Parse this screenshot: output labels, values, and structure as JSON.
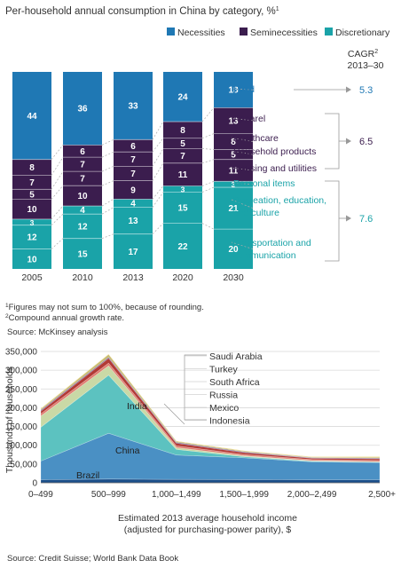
{
  "colors": {
    "necessities": "#1f78b4",
    "seminecessities": "#3b1d4e",
    "discretionary": "#1aa3a8",
    "grid": "#d0d0d0",
    "text": "#333333",
    "accent_text_dark": "#3b1d4e",
    "accent_text_teal": "#1aa3a8",
    "accent_text_blue": "#1f78b4"
  },
  "chart_data": [
    {
      "type": "bar",
      "title": "Per-household annual consumption in China by category, %",
      "title_sup": "1",
      "categories": [
        "2005",
        "2010",
        "2013",
        "2020",
        "2030"
      ],
      "legend": [
        "Necessities",
        "Seminecessities",
        "Discretionary"
      ],
      "series": [
        {
          "name": "Transportation and communication",
          "group": "discretionary",
          "values": [
            10,
            15,
            17,
            22,
            20
          ]
        },
        {
          "name": "Recreation, education, and culture",
          "group": "discretionary",
          "values": [
            12,
            12,
            13,
            15,
            21
          ]
        },
        {
          "name": "Personal items",
          "group": "discretionary",
          "values": [
            3,
            4,
            4,
            3,
            3
          ]
        },
        {
          "name": "Housing and utilities",
          "group": "seminecessities",
          "values": [
            10,
            10,
            9,
            11,
            11
          ]
        },
        {
          "name": "Household products",
          "group": "seminecessities",
          "values": [
            5,
            7,
            7,
            7,
            5
          ]
        },
        {
          "name": "Healthcare",
          "group": "seminecessities",
          "values": [
            7,
            7,
            7,
            5,
            8
          ]
        },
        {
          "name": "Apparel",
          "group": "seminecessities",
          "values": [
            8,
            6,
            6,
            8,
            13
          ]
        },
        {
          "name": "Food",
          "group": "necessities",
          "values": [
            44,
            36,
            33,
            24,
            18
          ]
        }
      ],
      "seg_labels": [
        [
          "10",
          "12",
          "3",
          "10",
          "5",
          "7",
          "8",
          "44"
        ],
        [
          "15",
          "12",
          "4",
          "10",
          "7",
          "7",
          "6",
          "36"
        ],
        [
          "17",
          "13",
          "4",
          "9",
          "7",
          "7",
          "6",
          "33"
        ],
        [
          "22",
          "15",
          "3",
          "11",
          "7",
          "5",
          "8",
          "24"
        ],
        [
          "20",
          "21",
          "3",
          "11",
          "5",
          "8",
          "13",
          "18"
        ]
      ],
      "cagr_header": "CAGR",
      "cagr_sup": "2",
      "cagr_period": "2013–30",
      "cagr": [
        {
          "group": "necessities",
          "value": "5.3"
        },
        {
          "group": "seminecessities",
          "value": "6.5"
        },
        {
          "group": "discretionary",
          "value": "7.6"
        }
      ],
      "footnote1": "Figures may not sum to 100%, because of rounding.",
      "footnote2": "Compound annual growth rate.",
      "source": "Source: McKinsey analysis"
    },
    {
      "type": "area",
      "ylabel": "Thousands of households",
      "xlabel_line1": "Estimated 2013 average household income",
      "xlabel_line2": "(adjusted for purchasing-power parity), $",
      "categories": [
        "0–499",
        "500–999",
        "1,000–1,499",
        "1,500–1,999",
        "2,000–2,499",
        "2,500+"
      ],
      "ylim": [
        0,
        350000
      ],
      "yticks": [
        "0",
        "50,000",
        "100,000",
        "150,000",
        "200,000",
        "250,000",
        "300,000",
        "350,000"
      ],
      "stack_order": [
        "Brazil",
        "China",
        "India",
        "Indonesia",
        "Mexico",
        "Russia",
        "South Africa",
        "Turkey",
        "Saudi Arabia"
      ],
      "series": [
        {
          "name": "Brazil",
          "values": [
            8000,
            10000,
            9000,
            8500,
            8000,
            8000
          ],
          "color": "#1b4f8a"
        },
        {
          "name": "China",
          "values": [
            50000,
            122000,
            65000,
            58000,
            48000,
            46000
          ],
          "color": "#4a90c4"
        },
        {
          "name": "India",
          "values": [
            90000,
            155000,
            15000,
            3000,
            1500,
            1000
          ],
          "color": "#5cc2c0"
        },
        {
          "name": "Indonesia",
          "values": [
            30000,
            25000,
            5000,
            2500,
            1500,
            1500
          ],
          "color": "#c9d9a6"
        },
        {
          "name": "Mexico",
          "values": [
            6000,
            7000,
            4500,
            3500,
            3000,
            3000
          ],
          "color": "#e07a6e"
        },
        {
          "name": "Russia",
          "values": [
            7000,
            13000,
            7000,
            5000,
            3500,
            4500
          ],
          "color": "#b23a36"
        },
        {
          "name": "South Africa",
          "values": [
            3000,
            3000,
            2500,
            2000,
            1500,
            2000
          ],
          "color": "#6b5b8f"
        },
        {
          "name": "Turkey",
          "values": [
            3000,
            7000,
            2500,
            2000,
            1500,
            2000
          ],
          "color": "#c6b86a"
        },
        {
          "name": "Saudi Arabia",
          "values": [
            1000,
            1000,
            1000,
            1000,
            1000,
            1500
          ],
          "color": "#e8c94a"
        }
      ],
      "legend_labels": [
        "Saudi Arabia",
        "Turkey",
        "South Africa",
        "Russia",
        "Mexico",
        "Indonesia"
      ],
      "inline_labels": [
        "India",
        "China",
        "Brazil"
      ],
      "source": "Source: Credit Suisse; World Bank Data Book"
    }
  ]
}
